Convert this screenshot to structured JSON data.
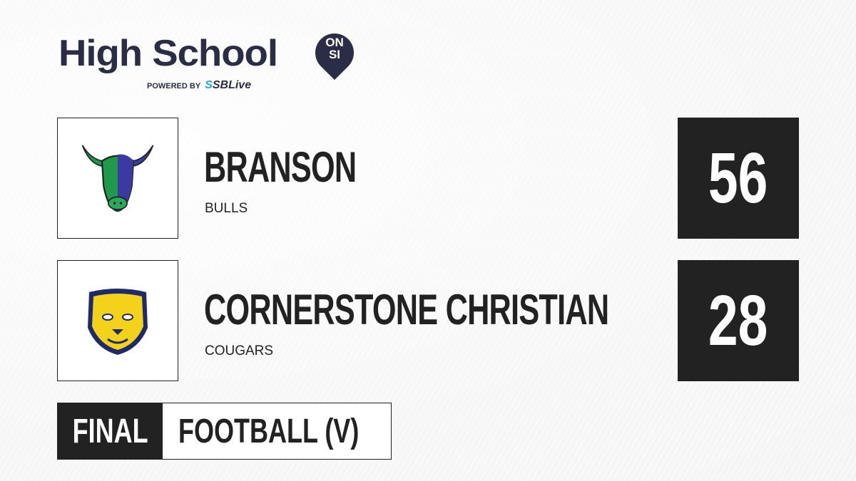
{
  "brand": {
    "title": "High School",
    "badge_top": "ON",
    "badge_bottom": "SI",
    "powered_by": "POWERED BY",
    "partner_prefix": "S",
    "partner": "SBLive"
  },
  "teams": [
    {
      "name": "BRANSON",
      "mascot": "BULLS",
      "score": "56",
      "logo": "bull-logo",
      "colors": [
        "#1e9a4a",
        "#3a3aa0"
      ]
    },
    {
      "name": "CORNERSTONE CHRISTIAN",
      "mascot": "COUGARS",
      "score": "28",
      "logo": "cougar-logo",
      "colors": [
        "#f2d21b",
        "#1f2a6b"
      ]
    }
  ],
  "status": "FINAL",
  "sport": "FOOTBALL (V)"
}
